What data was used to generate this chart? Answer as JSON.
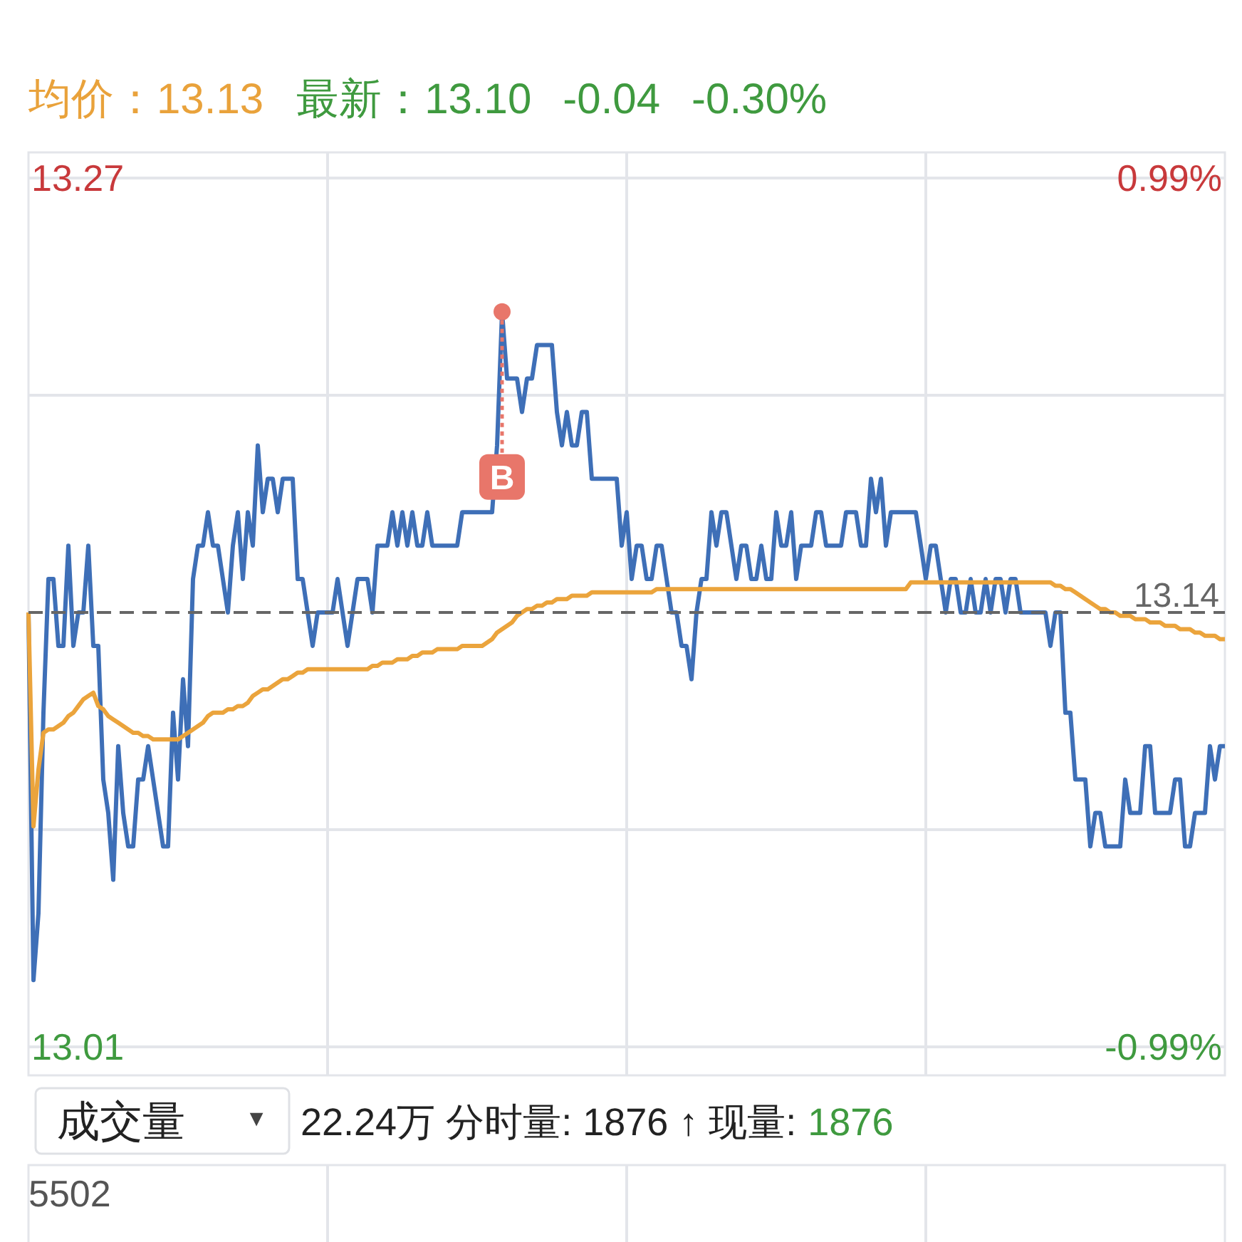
{
  "chart_data": {
    "type": "line",
    "categories": [
      null,
      null,
      null,
      null,
      null,
      null,
      null,
      null,
      null,
      null,
      null,
      null,
      null,
      null,
      null,
      null,
      null,
      null,
      null,
      null,
      null,
      null,
      null,
      null,
      null,
      null,
      null,
      null,
      null,
      null,
      null,
      null,
      null,
      null,
      null,
      null,
      null,
      null,
      null,
      null,
      null,
      null,
      null,
      null,
      null,
      null,
      null,
      null,
      null,
      null,
      null,
      null,
      null,
      null,
      null,
      null,
      null,
      null,
      null,
      null,
      null,
      null,
      null,
      null,
      null,
      null,
      null,
      null,
      null,
      null,
      null,
      null,
      null,
      null,
      null,
      null,
      null,
      null,
      null,
      null,
      null,
      null,
      null,
      null,
      null,
      null,
      null,
      null,
      null,
      null,
      null,
      null,
      null,
      null,
      null,
      null,
      null,
      null,
      null,
      null,
      null,
      null,
      null,
      null,
      null,
      null,
      null,
      null,
      null,
      null,
      null,
      null,
      null,
      null,
      null,
      null,
      null,
      null,
      null,
      null,
      null,
      null,
      null,
      null,
      null,
      null,
      null,
      null,
      null,
      null,
      null,
      null,
      null,
      null,
      null,
      null,
      null,
      null,
      null,
      null,
      null,
      null,
      null,
      null,
      null,
      null,
      null,
      null,
      null,
      null,
      null,
      null,
      null,
      null,
      null,
      null,
      null,
      null,
      null,
      null,
      null,
      null,
      null,
      null,
      null,
      null,
      null,
      null,
      null,
      null,
      null,
      null,
      null,
      null,
      null,
      null,
      null,
      null,
      null,
      null,
      null,
      null,
      null,
      null,
      null,
      null,
      null,
      null,
      null,
      null,
      null,
      null,
      null,
      null,
      null,
      null,
      null,
      null,
      null,
      null,
      null,
      null,
      null,
      null,
      null,
      null,
      null,
      null,
      null,
      null,
      null,
      null,
      null,
      null,
      null,
      null,
      null,
      null,
      null,
      null,
      null,
      null,
      null,
      null,
      null,
      null,
      null,
      null,
      null,
      null,
      null,
      null,
      null,
      null,
      null,
      null,
      null,
      null,
      null,
      null,
      null
    ],
    "ylim": [
      13.01,
      13.27
    ],
    "yticks": [
      {
        "value": 13.27,
        "label": "13.27"
      },
      {
        "value": 13.205,
        "label": null
      },
      {
        "value": 13.075,
        "label": null
      },
      {
        "value": 13.01,
        "label": "13.01"
      }
    ],
    "y2lim": [
      -0.99,
      0.99
    ],
    "y2ticks": [
      {
        "value": 0.99,
        "label": "0.99%"
      },
      {
        "value": -0.99,
        "label": "-0.99%"
      }
    ],
    "grid": true,
    "marker": "none",
    "line_style": "solid",
    "ref_lines": [
      {
        "axis": "y",
        "value": 13.14,
        "label": "13.14",
        "color": "#666666",
        "line_style": "dashed"
      }
    ],
    "series": [
      {
        "color": "#3e6fb7",
        "values": [
          13.14,
          13.03,
          13.05,
          13.11,
          13.15,
          13.15,
          13.13,
          13.13,
          13.16,
          13.13,
          13.14,
          13.14,
          13.16,
          13.13,
          13.13,
          13.09,
          13.08,
          13.06,
          13.1,
          13.08,
          13.07,
          13.07,
          13.09,
          13.09,
          13.1,
          13.09,
          13.08,
          13.07,
          13.07,
          13.11,
          13.09,
          13.12,
          13.1,
          13.15,
          13.16,
          13.16,
          13.17,
          13.16,
          13.16,
          13.15,
          13.14,
          13.16,
          13.17,
          13.15,
          13.17,
          13.16,
          13.19,
          13.17,
          13.18,
          13.18,
          13.17,
          13.18,
          13.18,
          13.18,
          13.15,
          13.15,
          13.14,
          13.13,
          13.14,
          13.14,
          13.14,
          13.14,
          13.15,
          13.14,
          13.13,
          13.14,
          13.15,
          13.15,
          13.15,
          13.14,
          13.16,
          13.16,
          13.16,
          13.17,
          13.16,
          13.17,
          13.16,
          13.17,
          13.16,
          13.16,
          13.17,
          13.16,
          13.16,
          13.16,
          13.16,
          13.16,
          13.16,
          13.17,
          13.17,
          13.17,
          13.17,
          13.17,
          13.17,
          13.17,
          13.19,
          13.23,
          13.21,
          13.21,
          13.21,
          13.2,
          13.21,
          13.21,
          13.22,
          13.22,
          13.22,
          13.22,
          13.2,
          13.19,
          13.2,
          13.19,
          13.19,
          13.2,
          13.2,
          13.18,
          13.18,
          13.18,
          13.18,
          13.18,
          13.18,
          13.16,
          13.17,
          13.15,
          13.16,
          13.16,
          13.15,
          13.15,
          13.16,
          13.16,
          13.15,
          13.14,
          13.14,
          13.13,
          13.13,
          13.12,
          13.14,
          13.15,
          13.15,
          13.17,
          13.16,
          13.17,
          13.17,
          13.16,
          13.15,
          13.16,
          13.16,
          13.15,
          13.15,
          13.16,
          13.15,
          13.15,
          13.17,
          13.16,
          13.16,
          13.17,
          13.15,
          13.16,
          13.16,
          13.16,
          13.17,
          13.17,
          13.16,
          13.16,
          13.16,
          13.16,
          13.17,
          13.17,
          13.17,
          13.16,
          13.16,
          13.18,
          13.17,
          13.18,
          13.16,
          13.17,
          13.17,
          13.17,
          13.17,
          13.17,
          13.17,
          13.16,
          13.15,
          13.16,
          13.16,
          13.15,
          13.14,
          13.15,
          13.15,
          13.14,
          13.14,
          13.15,
          13.14,
          13.14,
          13.15,
          13.14,
          13.15,
          13.15,
          13.14,
          13.15,
          13.15,
          13.14,
          13.14,
          13.14,
          13.14,
          13.14,
          13.14,
          13.13,
          13.14,
          13.14,
          13.11,
          13.11,
          13.09,
          13.09,
          13.09,
          13.07,
          13.08,
          13.08,
          13.07,
          13.07,
          13.07,
          13.07,
          13.09,
          13.08,
          13.08,
          13.08,
          13.1,
          13.1,
          13.08,
          13.08,
          13.08,
          13.08,
          13.09,
          13.09,
          13.07,
          13.07,
          13.08,
          13.08,
          13.08,
          13.1,
          13.09,
          13.1,
          13.1
        ]
      },
      {
        "color": "#eba43c",
        "values": [
          13.14,
          13.076,
          13.093,
          13.104,
          13.105,
          13.105,
          13.106,
          13.107,
          13.109,
          13.11,
          13.112,
          13.114,
          13.115,
          13.116,
          13.112,
          13.111,
          13.109,
          13.108,
          13.107,
          13.106,
          13.105,
          13.104,
          13.104,
          13.103,
          13.103,
          13.102,
          13.102,
          13.102,
          13.102,
          13.102,
          13.102,
          13.103,
          13.104,
          13.105,
          13.106,
          13.107,
          13.109,
          13.11,
          13.11,
          13.11,
          13.111,
          13.111,
          13.112,
          13.112,
          13.113,
          13.115,
          13.116,
          13.117,
          13.117,
          13.118,
          13.119,
          13.12,
          13.12,
          13.121,
          13.122,
          13.122,
          13.123,
          13.123,
          13.123,
          13.123,
          13.123,
          13.123,
          13.123,
          13.123,
          13.123,
          13.123,
          13.123,
          13.123,
          13.123,
          13.124,
          13.124,
          13.125,
          13.125,
          13.125,
          13.126,
          13.126,
          13.126,
          13.127,
          13.127,
          13.128,
          13.128,
          13.128,
          13.129,
          13.129,
          13.129,
          13.129,
          13.129,
          13.13,
          13.13,
          13.13,
          13.13,
          13.13,
          13.131,
          13.132,
          13.134,
          13.135,
          13.136,
          13.137,
          13.139,
          13.14,
          13.141,
          13.141,
          13.142,
          13.142,
          13.143,
          13.143,
          13.144,
          13.144,
          13.144,
          13.145,
          13.145,
          13.145,
          13.145,
          13.146,
          13.146,
          13.146,
          13.146,
          13.146,
          13.146,
          13.146,
          13.146,
          13.146,
          13.146,
          13.146,
          13.146,
          13.146,
          13.147,
          13.147,
          13.147,
          13.147,
          13.147,
          13.147,
          13.147,
          13.147,
          13.147,
          13.147,
          13.147,
          13.147,
          13.147,
          13.147,
          13.147,
          13.147,
          13.147,
          13.147,
          13.147,
          13.147,
          13.147,
          13.147,
          13.147,
          13.147,
          13.147,
          13.147,
          13.147,
          13.147,
          13.147,
          13.147,
          13.147,
          13.147,
          13.147,
          13.147,
          13.147,
          13.147,
          13.147,
          13.147,
          13.147,
          13.147,
          13.147,
          13.147,
          13.147,
          13.147,
          13.147,
          13.147,
          13.147,
          13.147,
          13.147,
          13.147,
          13.147,
          13.149,
          13.149,
          13.149,
          13.149,
          13.149,
          13.149,
          13.149,
          13.149,
          13.149,
          13.149,
          13.149,
          13.149,
          13.149,
          13.149,
          13.149,
          13.149,
          13.149,
          13.149,
          13.149,
          13.149,
          13.149,
          13.149,
          13.149,
          13.149,
          13.149,
          13.149,
          13.149,
          13.149,
          13.149,
          13.148,
          13.148,
          13.147,
          13.147,
          13.146,
          13.145,
          13.144,
          13.143,
          13.142,
          13.141,
          13.141,
          13.14,
          13.14,
          13.139,
          13.139,
          13.139,
          13.138,
          13.138,
          13.138,
          13.137,
          13.137,
          13.137,
          13.136,
          13.136,
          13.136,
          13.135,
          13.135,
          13.135,
          13.134,
          13.134,
          13.133,
          13.133,
          13.133,
          13.132,
          13.132
        ]
      }
    ],
    "annotations": [
      "均价：13.13",
      "最新：13.10",
      "-0.04",
      "-0.30%",
      {
        "text": "B",
        "y": 13.23
      },
      "成交量",
      "▼",
      "22.24万 分时量: 1876 ↑ 现量:",
      "1876",
      "5502"
    ]
  }
}
